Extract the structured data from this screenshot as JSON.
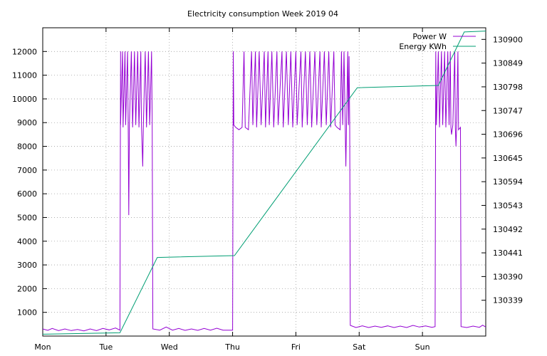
{
  "chart_data": {
    "type": "line",
    "title": "Electricity consumption Week 2019 04",
    "x_tick_labels": [
      "Mon",
      "Tue",
      "Wed",
      "Thu",
      "Fri",
      "Sat",
      "Sun"
    ],
    "xlim_days": [
      0,
      7
    ],
    "y_left": {
      "ticks": [
        1000,
        2000,
        3000,
        4000,
        5000,
        6000,
        7000,
        8000,
        9000,
        10000,
        11000,
        12000
      ],
      "ylim": [
        0,
        13000
      ]
    },
    "y_right": {
      "ticks": [
        130339,
        130390,
        130441,
        130492,
        130543,
        130594,
        130645,
        130696,
        130747,
        130798,
        130849,
        130900
      ],
      "ylim": [
        130262,
        130925
      ]
    },
    "grid": true,
    "legend_position": "top-right",
    "series": [
      {
        "name": "Power W",
        "axis": "left",
        "color": "#9400d3",
        "points": [
          [
            0.0,
            300
          ],
          [
            0.08,
            240
          ],
          [
            0.15,
            320
          ],
          [
            0.25,
            230
          ],
          [
            0.35,
            300
          ],
          [
            0.45,
            230
          ],
          [
            0.55,
            280
          ],
          [
            0.65,
            220
          ],
          [
            0.75,
            300
          ],
          [
            0.85,
            230
          ],
          [
            0.95,
            320
          ],
          [
            1.05,
            260
          ],
          [
            1.15,
            340
          ],
          [
            1.22,
            250
          ],
          [
            1.23,
            12000
          ],
          [
            1.23,
            8900
          ],
          [
            1.26,
            12000
          ],
          [
            1.27,
            8800
          ],
          [
            1.3,
            12000
          ],
          [
            1.31,
            8900
          ],
          [
            1.34,
            12000
          ],
          [
            1.35,
            8800
          ],
          [
            1.36,
            5100
          ],
          [
            1.37,
            8900
          ],
          [
            1.4,
            12000
          ],
          [
            1.42,
            8800
          ],
          [
            1.45,
            12000
          ],
          [
            1.47,
            8900
          ],
          [
            1.5,
            12000
          ],
          [
            1.52,
            8800
          ],
          [
            1.55,
            12000
          ],
          [
            1.56,
            8900
          ],
          [
            1.58,
            7150
          ],
          [
            1.59,
            8900
          ],
          [
            1.62,
            12000
          ],
          [
            1.64,
            8800
          ],
          [
            1.67,
            12000
          ],
          [
            1.69,
            8900
          ],
          [
            1.72,
            12000
          ],
          [
            1.73,
            8900
          ],
          [
            1.74,
            300
          ],
          [
            1.85,
            250
          ],
          [
            1.95,
            380
          ],
          [
            2.05,
            250
          ],
          [
            2.15,
            320
          ],
          [
            2.25,
            240
          ],
          [
            2.35,
            300
          ],
          [
            2.45,
            240
          ],
          [
            2.55,
            320
          ],
          [
            2.65,
            250
          ],
          [
            2.75,
            330
          ],
          [
            2.85,
            250
          ],
          [
            3.0,
            250
          ],
          [
            3.01,
            12000
          ],
          [
            3.02,
            8900
          ],
          [
            3.05,
            8800
          ],
          [
            3.1,
            8700
          ],
          [
            3.15,
            8800
          ],
          [
            3.18,
            12000
          ],
          [
            3.2,
            8800
          ],
          [
            3.25,
            8700
          ],
          [
            3.3,
            12000
          ],
          [
            3.32,
            8900
          ],
          [
            3.36,
            12000
          ],
          [
            3.38,
            8800
          ],
          [
            3.42,
            12000
          ],
          [
            3.45,
            8900
          ],
          [
            3.5,
            12000
          ],
          [
            3.52,
            8800
          ],
          [
            3.56,
            12000
          ],
          [
            3.58,
            8900
          ],
          [
            3.62,
            12000
          ],
          [
            3.65,
            8800
          ],
          [
            3.7,
            12000
          ],
          [
            3.72,
            8900
          ],
          [
            3.78,
            12000
          ],
          [
            3.8,
            8800
          ],
          [
            3.85,
            12000
          ],
          [
            3.88,
            8900
          ],
          [
            3.92,
            12000
          ],
          [
            3.95,
            8800
          ],
          [
            4.0,
            12000
          ],
          [
            4.02,
            8900
          ],
          [
            4.08,
            12000
          ],
          [
            4.1,
            8800
          ],
          [
            4.15,
            12000
          ],
          [
            4.18,
            8900
          ],
          [
            4.22,
            12000
          ],
          [
            4.25,
            8800
          ],
          [
            4.3,
            12000
          ],
          [
            4.33,
            8900
          ],
          [
            4.38,
            12000
          ],
          [
            4.4,
            8800
          ],
          [
            4.45,
            12000
          ],
          [
            4.48,
            8900
          ],
          [
            4.52,
            12000
          ],
          [
            4.55,
            8800
          ],
          [
            4.6,
            12000
          ],
          [
            4.62,
            8900
          ],
          [
            4.65,
            8800
          ],
          [
            4.7,
            8700
          ],
          [
            4.72,
            12000
          ],
          [
            4.74,
            8900
          ],
          [
            4.76,
            12000
          ],
          [
            4.78,
            8800
          ],
          [
            4.79,
            7150
          ],
          [
            4.8,
            8900
          ],
          [
            4.82,
            12000
          ],
          [
            4.83,
            8900
          ],
          [
            4.84,
            11800
          ],
          [
            4.85,
            8900
          ],
          [
            4.86,
            450
          ],
          [
            4.95,
            360
          ],
          [
            5.05,
            430
          ],
          [
            5.15,
            360
          ],
          [
            5.25,
            420
          ],
          [
            5.35,
            370
          ],
          [
            5.45,
            430
          ],
          [
            5.55,
            360
          ],
          [
            5.65,
            420
          ],
          [
            5.75,
            360
          ],
          [
            5.85,
            450
          ],
          [
            5.95,
            380
          ],
          [
            6.05,
            430
          ],
          [
            6.15,
            370
          ],
          [
            6.2,
            400
          ],
          [
            6.21,
            12000
          ],
          [
            6.22,
            8900
          ],
          [
            6.25,
            12000
          ],
          [
            6.27,
            8800
          ],
          [
            6.3,
            12000
          ],
          [
            6.32,
            8900
          ],
          [
            6.35,
            12000
          ],
          [
            6.37,
            8800
          ],
          [
            6.4,
            12000
          ],
          [
            6.42,
            8900
          ],
          [
            6.44,
            12000
          ],
          [
            6.45,
            8800
          ],
          [
            6.46,
            8500
          ],
          [
            6.48,
            8900
          ],
          [
            6.51,
            12000
          ],
          [
            6.52,
            8800
          ],
          [
            6.53,
            8000
          ],
          [
            6.54,
            8800
          ],
          [
            6.56,
            12000
          ],
          [
            6.57,
            8700
          ],
          [
            6.6,
            8800
          ],
          [
            6.61,
            400
          ],
          [
            6.7,
            360
          ],
          [
            6.8,
            420
          ],
          [
            6.9,
            370
          ],
          [
            6.95,
            460
          ],
          [
            7.0,
            380
          ]
        ]
      },
      {
        "name": "Energy KWh",
        "axis": "right",
        "color": "#009e73",
        "points": [
          [
            0.0,
            130266
          ],
          [
            1.22,
            130269
          ],
          [
            1.81,
            130431
          ],
          [
            3.03,
            130435
          ],
          [
            4.97,
            130796
          ],
          [
            6.25,
            130801
          ],
          [
            6.66,
            130916
          ],
          [
            7.0,
            130918
          ]
        ]
      }
    ]
  }
}
